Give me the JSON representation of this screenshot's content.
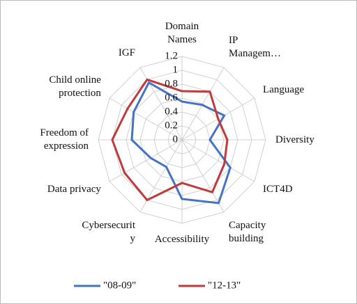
{
  "chart_data": {
    "type": "radar",
    "categories": [
      "Domain Names",
      "IP Managem…",
      "Language",
      "Diversity",
      "ICT4D",
      "Capacity building",
      "Accessibility",
      "Cybersecurity",
      "Data privacy",
      "Freedom of expression",
      "Child online protection",
      "IGF"
    ],
    "series": [
      {
        "name": "\"08-09\"",
        "color": "#4472c4",
        "values": [
          0.55,
          0.58,
          0.7,
          0.4,
          0.8,
          1.05,
          0.85,
          0.45,
          0.52,
          0.72,
          0.8,
          0.95
        ]
      },
      {
        "name": "\"12-13\"",
        "color": "#c0393b",
        "values": [
          0.7,
          0.8,
          0.6,
          0.65,
          0.7,
          0.87,
          0.62,
          1.0,
          0.95,
          1.0,
          0.9,
          1.0
        ]
      }
    ],
    "ylim": [
      0,
      1.2
    ],
    "yticks": [
      0,
      {
        "value": 0.2,
        "label": "0.2"
      },
      {
        "value": 0.4,
        "label": "0.4"
      },
      {
        "value": 0.6,
        "label": "0.6"
      },
      {
        "value": 0.8,
        "label": "0.8"
      },
      1,
      {
        "value": 1.2,
        "label": "1.2"
      }
    ],
    "grid": true,
    "legend": "bottom"
  }
}
